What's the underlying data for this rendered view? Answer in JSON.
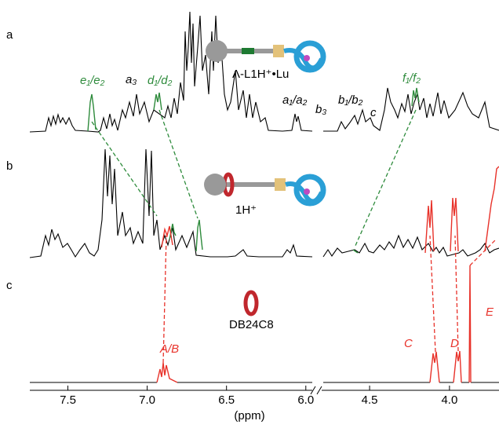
{
  "chart_data": {
    "type": "nmr",
    "x_label": "(ppm)",
    "segments": [
      {
        "xlim": [
          7.74,
          5.9
        ],
        "xticks": [
          7.5,
          {
            "value": 7,
            "label": "7.0"
          },
          6.5,
          {
            "value": 6,
            "label": "6.0"
          }
        ]
      },
      {
        "xlim": [
          4.8,
          3.69
        ],
        "xticks": [
          4.5,
          {
            "value": 4,
            "label": "4.0"
          }
        ]
      }
    ],
    "panels": [
      {
        "label": "a",
        "compound": "Λ-L1H⁺•Lu",
        "peaks": [
          "e₁/e₂",
          "a₃",
          "d₁/d₂",
          "a₁/a₂",
          "b₃",
          "b₁/b₂",
          "c",
          "f₁/f₂"
        ]
      },
      {
        "label": "b",
        "compound": "1H⁺"
      },
      {
        "label": "c",
        "compound": "DB24C8",
        "peaks": [
          "A/B",
          "C",
          "D",
          "E"
        ]
      }
    ]
  }
}
